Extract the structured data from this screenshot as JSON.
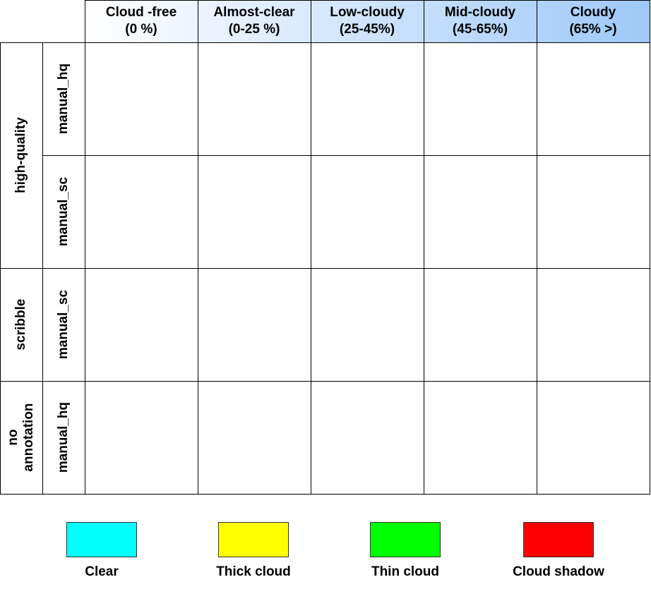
{
  "columns": [
    {
      "label": "Cloud -free\n(0 %)",
      "bg": "#ffffff"
    },
    {
      "label": "Almost-clear\n(0-25 %)",
      "bg": "#f2f7fe"
    },
    {
      "label": "Low-cloudy\n(25-45%)",
      "bg": "#e1edfc"
    },
    {
      "label": "Mid-cloudy\n(45-65%)",
      "bg": "#c5dcfa"
    },
    {
      "label": "Cloudy\n(65% >)",
      "bg": "#a4caf8"
    }
  ],
  "groups": [
    {
      "label": "high-quality"
    },
    {
      "label": "scribble"
    },
    {
      "label": "no\nannotation"
    }
  ],
  "rows": [
    {
      "label": "manual_hq"
    },
    {
      "label": "manual_sc"
    },
    {
      "label": "manual_sc"
    },
    {
      "label": "manual_hq"
    }
  ],
  "legend": [
    {
      "label": "Clear",
      "color": "#00ffff"
    },
    {
      "label": "Thick cloud",
      "color": "#ffff00"
    },
    {
      "label": "Thin cloud",
      "color": "#00ff00"
    },
    {
      "label": "Cloud shadow",
      "color": "#ff0000"
    }
  ]
}
